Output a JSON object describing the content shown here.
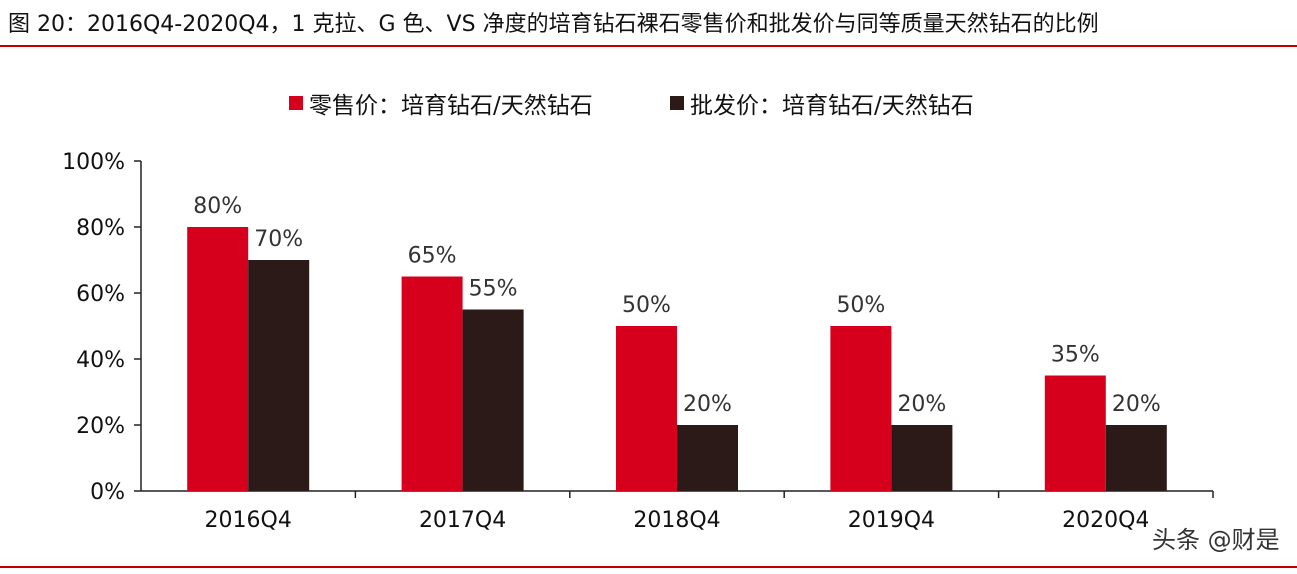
{
  "title": "图 20：2016Q4-2020Q4，1 克拉、G 色、VS 净度的培育钻石裸石零售价和批发价与同等质量天然钻石的比例",
  "watermark": "头条 @财是",
  "colors": {
    "accent_rule": "#c00000",
    "retail": "#d6001c",
    "wholesale": "#2b1a17"
  },
  "chart_data": {
    "type": "bar",
    "categories": [
      "2016Q4",
      "2017Q4",
      "2018Q4",
      "2019Q4",
      "2020Q4"
    ],
    "series": [
      {
        "name": "零售价：培育钻石/天然钻石",
        "values": [
          80,
          65,
          50,
          50,
          35
        ],
        "labels": [
          "80%",
          "65%",
          "50%",
          "50%",
          "35%"
        ]
      },
      {
        "name": "批发价：培育钻石/天然钻石",
        "values": [
          70,
          55,
          20,
          20,
          20
        ],
        "labels": [
          "70%",
          "55%",
          "20%",
          "20%",
          "20%"
        ]
      }
    ],
    "ylim": [
      0,
      100
    ],
    "yticks": [
      "0%",
      "20%",
      "40%",
      "60%",
      "80%",
      "100%"
    ],
    "ytick_values": [
      0,
      20,
      40,
      60,
      80,
      100
    ],
    "grid": false,
    "legend_position": "top-center"
  }
}
